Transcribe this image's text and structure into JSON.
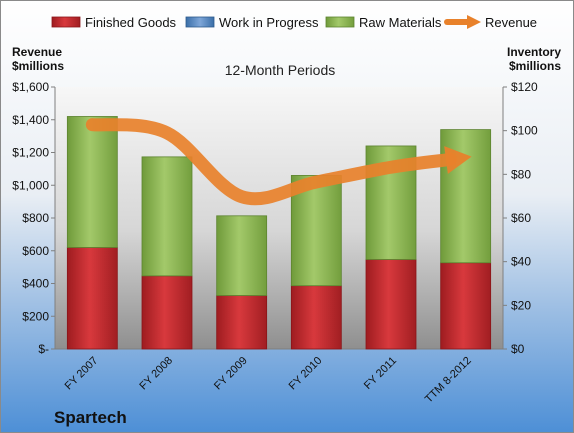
{
  "chart_data": {
    "type": "bar",
    "stacked": true,
    "title": "12-Month Periods",
    "company": "Spartech",
    "categories": [
      "FY 2007",
      "FY 2008",
      "FY 2009",
      "FY 2010",
      "FY 2011",
      "TTM 8-2012"
    ],
    "left_axis": {
      "label_line1": "Revenue",
      "label_line2": "$millions",
      "range": [
        0,
        1600
      ],
      "ticks": [
        0,
        200,
        400,
        600,
        800,
        1000,
        1200,
        1400,
        1600
      ],
      "tick_labels": [
        "$-",
        "$200",
        "$400",
        "$600",
        "$800",
        "$1,000",
        "$1,200",
        "$1,400",
        "$1,600"
      ]
    },
    "right_axis": {
      "label_line1": "Inventory",
      "label_line2": "$millions",
      "range": [
        0,
        120
      ],
      "ticks": [
        0,
        20,
        40,
        60,
        80,
        100,
        120
      ],
      "tick_labels": [
        "$0",
        "$20",
        "$40",
        "$60",
        "$80",
        "$100",
        "$120"
      ]
    },
    "series": [
      {
        "name": "Finished Goods",
        "axis": "right",
        "kind": "bar",
        "color": "#c0262c",
        "values": [
          46.5,
          33.5,
          24.5,
          29,
          41,
          39.5
        ]
      },
      {
        "name": "Work in Progress",
        "axis": "right",
        "kind": "bar",
        "color": "#4f81bd",
        "values": [
          0,
          0,
          0,
          0,
          0,
          0
        ]
      },
      {
        "name": "Raw Materials",
        "axis": "right",
        "kind": "bar",
        "color": "#8db353",
        "values": [
          60,
          54.5,
          36.5,
          50.5,
          52,
          61
        ]
      },
      {
        "name": "Revenue",
        "axis": "left",
        "kind": "line",
        "color": "#e8812b",
        "values": [
          1370,
          1320,
          930,
          1020,
          1110,
          1170
        ]
      }
    ],
    "legend_position": "top",
    "grid": false
  }
}
